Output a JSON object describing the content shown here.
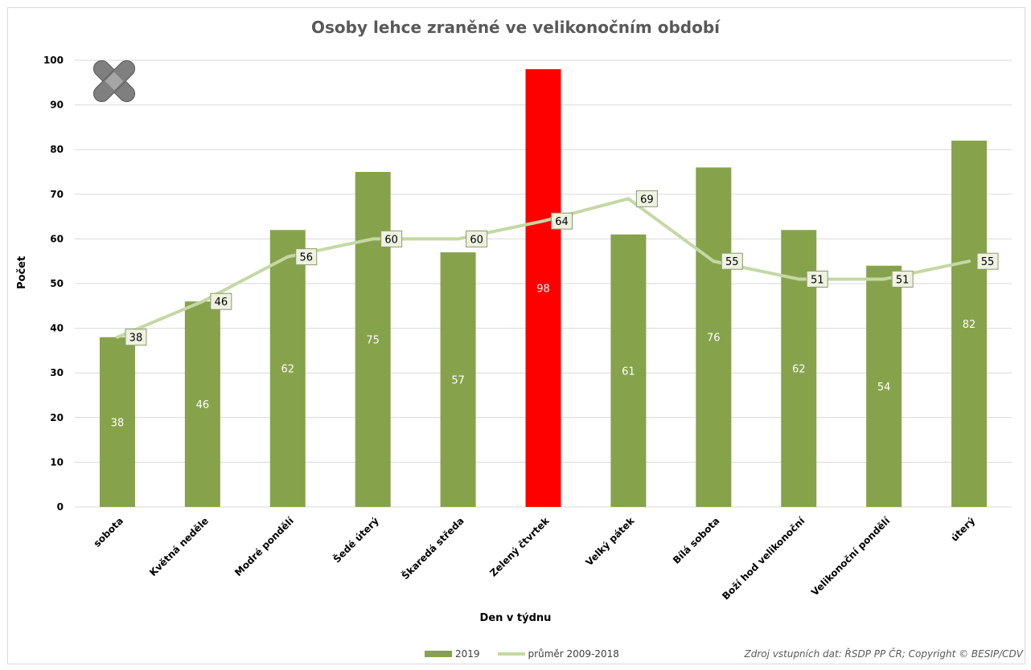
{
  "chart_data": {
    "type": "bar",
    "title": "Osoby lehce zraněné ve velikonočním období",
    "xlabel": "Den v týdnu",
    "ylabel": "Počet",
    "ylim": [
      0,
      100
    ],
    "yticks": [
      0,
      10,
      20,
      30,
      40,
      50,
      60,
      70,
      80,
      90,
      100
    ],
    "categories": [
      "sobota",
      "Květná neděle",
      "Modré pondělí",
      "Šedé úterý",
      "Škaredá středa",
      "Zelený čtvrtek",
      "Velký pátek",
      "Bílá sobota",
      "Boží hod velikonoční",
      "Velikonoční pondělí",
      "úterý"
    ],
    "series": [
      {
        "name": "2019",
        "type": "bar",
        "values": [
          38,
          46,
          62,
          75,
          57,
          98,
          61,
          76,
          62,
          54,
          82
        ],
        "color": "#86a34c",
        "highlight_index": 5,
        "highlight_color": "#ff0000"
      },
      {
        "name": "průměr 2009-2018",
        "type": "line",
        "values": [
          38,
          46,
          56,
          60,
          60,
          64,
          69,
          55,
          51,
          51,
          55
        ],
        "color": "#c5d8a4"
      }
    ],
    "grid": true,
    "legend_position": "bottom"
  },
  "source": "Zdroj vstupních dat: ŘSDP PP ČR; Copyright © BESIP/CDV",
  "icon": "bandage-icon"
}
